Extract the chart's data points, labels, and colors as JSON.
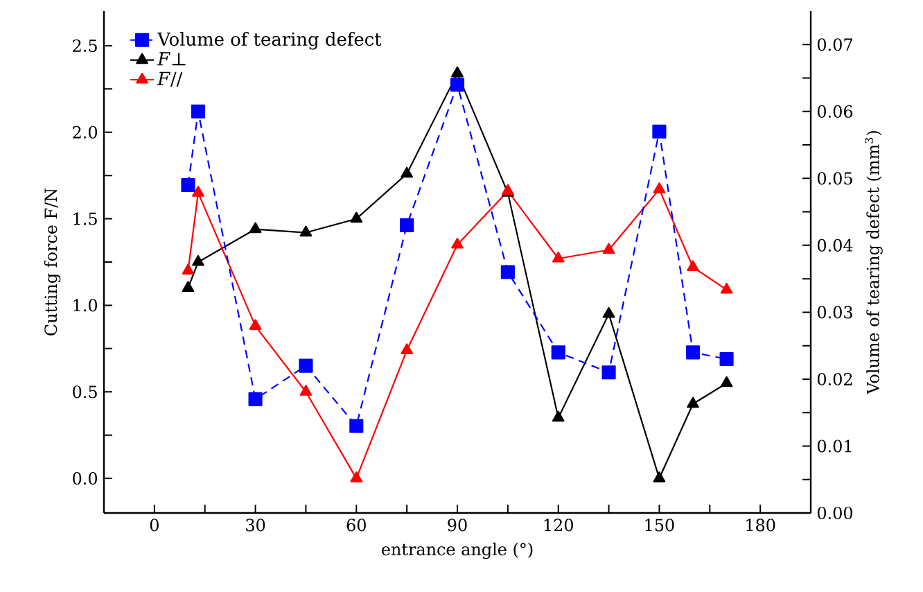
{
  "chart_data": {
    "type": "line",
    "xlabel": "entrance angle (°)",
    "ylabel": "Cutting force F/N",
    "y2label": "Volume of tearing defect (mm$^{3}$)",
    "xlim": [
      -15,
      195
    ],
    "xticks": [
      0,
      {
        "value": 15,
        "label": null
      },
      30,
      {
        "value": 45,
        "label": null
      },
      60,
      {
        "value": 75,
        "label": null
      },
      90,
      {
        "value": 105,
        "label": null
      },
      120,
      {
        "value": 135,
        "label": null
      },
      150,
      {
        "value": 165,
        "label": null
      },
      180
    ],
    "ylim": [
      -0.2,
      2.7
    ],
    "yticks": [
      {
        "value": 0,
        "label": "0.0"
      },
      {
        "value": 0.25,
        "label": null
      },
      0.5,
      {
        "value": 0.75,
        "label": null
      },
      {
        "value": 1,
        "label": "1.0"
      },
      {
        "value": 1.25,
        "label": null
      },
      1.5,
      {
        "value": 1.75,
        "label": null
      },
      {
        "value": 2,
        "label": "2.0"
      },
      {
        "value": 2.25,
        "label": null
      },
      2.5
    ],
    "y2lim": [
      0,
      0.075
    ],
    "y2ticks": [
      {
        "value": 0,
        "label": "0.00"
      },
      {
        "value": 0.005,
        "label": null
      },
      0.01,
      {
        "value": 0.015,
        "label": null
      },
      0.02,
      {
        "value": 0.025,
        "label": null
      },
      0.03,
      {
        "value": 0.035,
        "label": null
      },
      0.04,
      {
        "value": 0.045,
        "label": null
      },
      0.05,
      {
        "value": 0.055,
        "label": null
      },
      0.06,
      {
        "value": 0.065,
        "label": null
      },
      0.07
    ],
    "legend": "top left",
    "grid": false,
    "series": [
      {
        "name": "Volume of tearing defect",
        "color": "#0000ff",
        "axis": "y2",
        "marker": "square",
        "line_style": "dashed",
        "x": [
          10,
          13,
          30,
          45,
          60,
          75,
          90,
          105,
          120,
          135,
          150,
          160,
          170
        ],
        "values": [
          0.049,
          0.06,
          0.017,
          0.022,
          0.013,
          0.043,
          0.064,
          0.036,
          0.024,
          0.021,
          0.057,
          0.024,
          0.023
        ]
      },
      {
        "name": "*F*⊥",
        "color": "#000000",
        "axis": "y",
        "marker": "triangle",
        "line_style": "solid",
        "x": [
          10,
          13,
          30,
          45,
          60,
          75,
          90,
          105,
          120,
          135,
          150,
          160,
          170
        ],
        "values": [
          1.1,
          1.25,
          1.44,
          1.42,
          1.5,
          1.76,
          2.34,
          1.65,
          0.35,
          0.95,
          0.0,
          0.43,
          0.55
        ]
      },
      {
        "name": "*F*//",
        "color": "#ff0000",
        "axis": "y",
        "marker": "triangle",
        "line_style": "solid",
        "x": [
          10,
          13,
          30,
          45,
          60,
          75,
          90,
          105,
          120,
          135,
          150,
          160,
          170
        ],
        "values": [
          1.2,
          1.65,
          0.88,
          0.5,
          0.0,
          0.74,
          1.35,
          1.66,
          1.27,
          1.32,
          1.67,
          1.22,
          1.09
        ]
      }
    ]
  }
}
